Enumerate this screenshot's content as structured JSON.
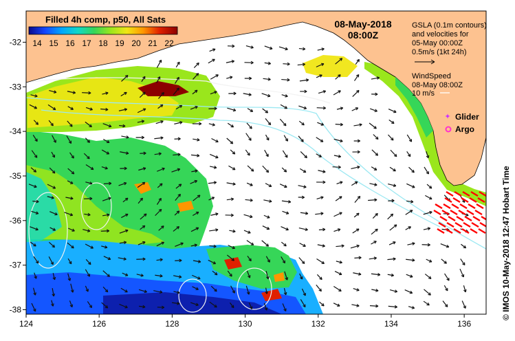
{
  "map": {
    "product": "Filled 4h comp, p50, All Sats",
    "date": "08-May-2018",
    "time": "08:00Z",
    "credit": "© IMOS 10-May-2018 12:47 Hobart Time"
  },
  "colorbar": {
    "labels": [
      "14",
      "15",
      "16",
      "17",
      "18",
      "19",
      "20",
      "21",
      "22"
    ],
    "min": 13.5,
    "max": 22.5,
    "stops": [
      "#0a0a8c",
      "#1446ff",
      "#00a6ff",
      "#10d8c8",
      "#36d658",
      "#9ae61c",
      "#f0e614",
      "#ff9600",
      "#e02000",
      "#8c0000"
    ]
  },
  "axes": {
    "x_ticks": [
      "124",
      "126",
      "128",
      "130",
      "132",
      "134",
      "136"
    ],
    "y_ticks": [
      "-32",
      "-33",
      "-34",
      "-35",
      "-36",
      "-37",
      "-38"
    ],
    "lon_range": [
      124,
      136.6
    ],
    "lat_range": [
      -38.1,
      -31.3
    ]
  },
  "gsla_legend": {
    "lines": [
      "GSLA (0.1m contours)",
      "and velocities for",
      "05-May 00:00Z",
      "0.5m/s (1kt 24h)"
    ]
  },
  "wind_legend": {
    "lines": [
      "WindSpeed",
      "08-May 08:00Z",
      "10 m/s"
    ]
  },
  "markers": {
    "glider_label": "Glider",
    "argo_label": "Argo",
    "glider_color": "#cc33ff",
    "argo_color": "#ff33cc"
  },
  "colors": {
    "land": "#fdc290",
    "ocean_nodata": "#ffffff",
    "contour": "#9be8f2",
    "wind": "#ff0000"
  }
}
